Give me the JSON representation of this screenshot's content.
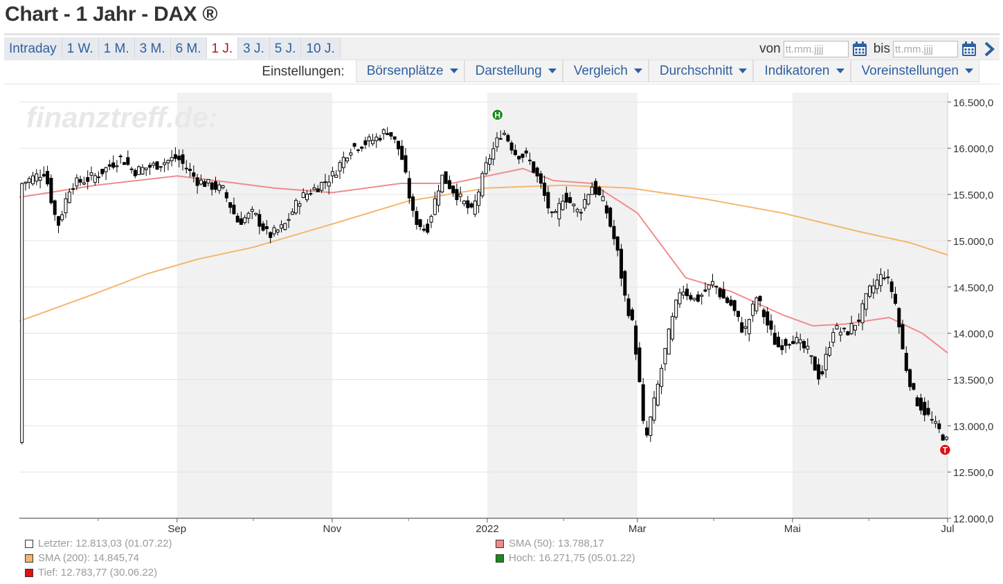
{
  "title": "Chart - 1 Jahr - DAX ®",
  "range_tabs": [
    {
      "label": "Intraday",
      "active": false
    },
    {
      "label": "1 W.",
      "active": false
    },
    {
      "label": "1 M.",
      "active": false
    },
    {
      "label": "3 M.",
      "active": false
    },
    {
      "label": "6 M.",
      "active": false
    },
    {
      "label": "1 J.",
      "active": true
    },
    {
      "label": "3 J.",
      "active": false
    },
    {
      "label": "5 J.",
      "active": false
    },
    {
      "label": "10 J.",
      "active": false
    }
  ],
  "date_range": {
    "from_label": "von",
    "to_label": "bis",
    "from_placeholder": "tt.mm.jjjj",
    "to_placeholder": "tt.mm.jjjj",
    "from_value": "",
    "to_value": ""
  },
  "settings": {
    "label": "Einstellungen:",
    "buttons": [
      "Börsenplätze",
      "Darstellung",
      "Vergleich",
      "Durchschnitt",
      "Indikatoren",
      "Voreinstellungen"
    ]
  },
  "icons": {
    "calendar": "calendar-icon",
    "next": "chevron-right-icon",
    "dropdown": "caret-down-icon"
  },
  "colors": {
    "accent": "#2e5f9e",
    "active_tab": "#b3161d",
    "sma50": "#f08b8b",
    "sma200": "#f5b56b",
    "high_marker": "#1a8a1a",
    "low_marker": "#e01010"
  },
  "chart_data": {
    "type": "candlestick",
    "watermark": "finanztreff.de:",
    "y_axis": {
      "ticks": [
        12000,
        12500,
        13000,
        13500,
        14000,
        14500,
        15000,
        15500,
        16000,
        16500
      ],
      "tick_labels": [
        "12.000,0",
        "12.500,0",
        "13.000,0",
        "13.500,0",
        "14.000,0",
        "14.500,0",
        "15.000,0",
        "15.500,0",
        "16.000,0",
        "16.500,0"
      ],
      "range": [
        12000,
        16600
      ],
      "position": "right"
    },
    "x_axis": {
      "range_days": [
        0,
        365
      ],
      "month_labels": [
        {
          "label": "Sep",
          "day": 62
        },
        {
          "label": "Nov",
          "day": 123
        },
        {
          "label": "2022",
          "day": 184
        },
        {
          "label": "Mar",
          "day": 243
        },
        {
          "label": "Mai",
          "day": 304
        },
        {
          "label": "Jul",
          "day": 365
        }
      ],
      "minor_tick_days": [
        31,
        92,
        153,
        214,
        273,
        334
      ],
      "shaded_bands_days": [
        [
          62,
          123
        ],
        [
          184,
          243
        ],
        [
          304,
          365
        ]
      ]
    },
    "grid": true,
    "price_series": [
      {
        "day": 1,
        "value": 15620
      },
      {
        "day": 10,
        "value": 15750
      },
      {
        "day": 15,
        "value": 15150
      },
      {
        "day": 20,
        "value": 15600
      },
      {
        "day": 30,
        "value": 15700
      },
      {
        "day": 40,
        "value": 15900
      },
      {
        "day": 45,
        "value": 15750
      },
      {
        "day": 55,
        "value": 15830
      },
      {
        "day": 62,
        "value": 15900
      },
      {
        "day": 70,
        "value": 15650
      },
      {
        "day": 80,
        "value": 15550
      },
      {
        "day": 86,
        "value": 15200
      },
      {
        "day": 92,
        "value": 15300
      },
      {
        "day": 98,
        "value": 15050
      },
      {
        "day": 104,
        "value": 15150
      },
      {
        "day": 110,
        "value": 15450
      },
      {
        "day": 118,
        "value": 15600
      },
      {
        "day": 123,
        "value": 15700
      },
      {
        "day": 130,
        "value": 16000
      },
      {
        "day": 140,
        "value": 16100
      },
      {
        "day": 145,
        "value": 16200
      },
      {
        "day": 150,
        "value": 15950
      },
      {
        "day": 155,
        "value": 15250
      },
      {
        "day": 160,
        "value": 15100
      },
      {
        "day": 166,
        "value": 15700
      },
      {
        "day": 172,
        "value": 15500
      },
      {
        "day": 178,
        "value": 15300
      },
      {
        "day": 184,
        "value": 15850
      },
      {
        "day": 190,
        "value": 16200
      },
      {
        "day": 195,
        "value": 15950
      },
      {
        "day": 200,
        "value": 15900
      },
      {
        "day": 205,
        "value": 15600
      },
      {
        "day": 210,
        "value": 15200
      },
      {
        "day": 214,
        "value": 15500
      },
      {
        "day": 220,
        "value": 15300
      },
      {
        "day": 225,
        "value": 15600
      },
      {
        "day": 230,
        "value": 15400
      },
      {
        "day": 235,
        "value": 14900
      },
      {
        "day": 238,
        "value": 14400
      },
      {
        "day": 241,
        "value": 14100
      },
      {
        "day": 243,
        "value": 13700
      },
      {
        "day": 246,
        "value": 12800
      },
      {
        "day": 250,
        "value": 13300
      },
      {
        "day": 255,
        "value": 13950
      },
      {
        "day": 260,
        "value": 14500
      },
      {
        "day": 266,
        "value": 14350
      },
      {
        "day": 273,
        "value": 14550
      },
      {
        "day": 276,
        "value": 14400
      },
      {
        "day": 280,
        "value": 14300
      },
      {
        "day": 285,
        "value": 14000
      },
      {
        "day": 290,
        "value": 14400
      },
      {
        "day": 294,
        "value": 14100
      },
      {
        "day": 298,
        "value": 13850
      },
      {
        "day": 304,
        "value": 13950
      },
      {
        "day": 310,
        "value": 13800
      },
      {
        "day": 315,
        "value": 13500
      },
      {
        "day": 320,
        "value": 14050
      },
      {
        "day": 325,
        "value": 14000
      },
      {
        "day": 330,
        "value": 14150
      },
      {
        "day": 334,
        "value": 14450
      },
      {
        "day": 340,
        "value": 14650
      },
      {
        "day": 344,
        "value": 14400
      },
      {
        "day": 348,
        "value": 13700
      },
      {
        "day": 352,
        "value": 13300
      },
      {
        "day": 356,
        "value": 13150
      },
      {
        "day": 360,
        "value": 13000
      },
      {
        "day": 363,
        "value": 12900
      },
      {
        "day": 365,
        "value": 12813
      }
    ],
    "sma50": [
      {
        "day": 0,
        "value": 15470
      },
      {
        "day": 30,
        "value": 15600
      },
      {
        "day": 62,
        "value": 15700
      },
      {
        "day": 80,
        "value": 15640
      },
      {
        "day": 100,
        "value": 15570
      },
      {
        "day": 123,
        "value": 15520
      },
      {
        "day": 150,
        "value": 15620
      },
      {
        "day": 170,
        "value": 15620
      },
      {
        "day": 184,
        "value": 15700
      },
      {
        "day": 198,
        "value": 15780
      },
      {
        "day": 210,
        "value": 15650
      },
      {
        "day": 225,
        "value": 15620
      },
      {
        "day": 243,
        "value": 15300
      },
      {
        "day": 262,
        "value": 14600
      },
      {
        "day": 280,
        "value": 14450
      },
      {
        "day": 300,
        "value": 14200
      },
      {
        "day": 312,
        "value": 14080
      },
      {
        "day": 325,
        "value": 14100
      },
      {
        "day": 342,
        "value": 14170
      },
      {
        "day": 355,
        "value": 14000
      },
      {
        "day": 365,
        "value": 13788
      }
    ],
    "sma200": [
      {
        "day": 0,
        "value": 14130
      },
      {
        "day": 30,
        "value": 14430
      },
      {
        "day": 50,
        "value": 14640
      },
      {
        "day": 70,
        "value": 14800
      },
      {
        "day": 92,
        "value": 14930
      },
      {
        "day": 123,
        "value": 15180
      },
      {
        "day": 153,
        "value": 15430
      },
      {
        "day": 184,
        "value": 15570
      },
      {
        "day": 214,
        "value": 15600
      },
      {
        "day": 240,
        "value": 15570
      },
      {
        "day": 270,
        "value": 15450
      },
      {
        "day": 300,
        "value": 15300
      },
      {
        "day": 330,
        "value": 15100
      },
      {
        "day": 350,
        "value": 14980
      },
      {
        "day": 365,
        "value": 14846
      }
    ],
    "markers": [
      {
        "label": "H",
        "day": 188,
        "value": 16272
      },
      {
        "label": "T",
        "day": 364,
        "value": 12784
      }
    ],
    "legend": [
      {
        "text": "Letzter: 12.813,03 (01.07.22)",
        "color": "#ffffff"
      },
      {
        "text": "SMA (200): 14.845,74",
        "color": "#f5b56b"
      },
      {
        "text": "Tief: 12.783,77 (30.06.22)",
        "color": "#e01010"
      },
      {
        "text": "SMA (50): 13.788,17",
        "color": "#f08b8b"
      },
      {
        "text": "Hoch: 16.271,75 (05.01.22)",
        "color": "#1a8a1a"
      }
    ]
  }
}
